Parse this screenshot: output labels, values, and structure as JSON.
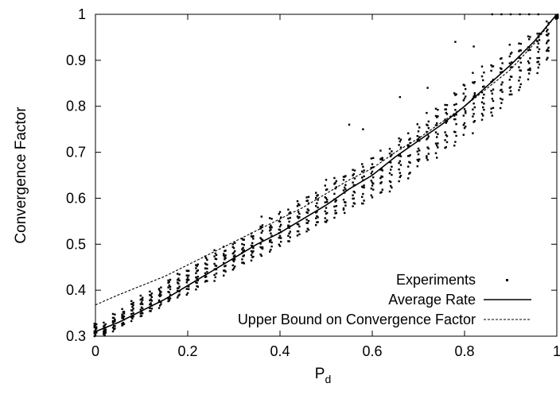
{
  "chart_data": {
    "type": "scatter",
    "xlabel": "P",
    "xlabel_sub": "d",
    "ylabel": "Convergence Factor",
    "xlim": [
      0,
      1
    ],
    "ylim": [
      0.3,
      1
    ],
    "xticks": [
      "0",
      "0.2",
      "0.4",
      "0.6",
      "0.8",
      "1"
    ],
    "xtick_values": [
      0,
      0.2,
      0.4,
      0.6,
      0.8,
      1
    ],
    "yticks": [
      "0.3",
      "0.4",
      "0.5",
      "0.6",
      "0.7",
      "0.8",
      "0.9",
      "1"
    ],
    "ytick_values": [
      0.3,
      0.4,
      0.5,
      0.6,
      0.7,
      0.8,
      0.9,
      1
    ],
    "legend_position": "bottom-right",
    "series": [
      {
        "name": "Experiments",
        "style": "points",
        "x": [
          0,
          0.02,
          0.04,
          0.06,
          0.08,
          0.1,
          0.12,
          0.14,
          0.16,
          0.18,
          0.2,
          0.22,
          0.24,
          0.26,
          0.28,
          0.3,
          0.32,
          0.34,
          0.36,
          0.38,
          0.4,
          0.42,
          0.44,
          0.46,
          0.48,
          0.5,
          0.52,
          0.54,
          0.56,
          0.58,
          0.6,
          0.62,
          0.64,
          0.66,
          0.68,
          0.7,
          0.72,
          0.74,
          0.76,
          0.78,
          0.8,
          0.82,
          0.84,
          0.86,
          0.88,
          0.9,
          0.92,
          0.94,
          0.96,
          0.98,
          1
        ],
        "y_min": [
          0.3,
          0.3,
          0.31,
          0.32,
          0.33,
          0.34,
          0.35,
          0.36,
          0.37,
          0.38,
          0.39,
          0.4,
          0.41,
          0.42,
          0.43,
          0.44,
          0.45,
          0.46,
          0.47,
          0.48,
          0.49,
          0.5,
          0.51,
          0.52,
          0.53,
          0.54,
          0.55,
          0.56,
          0.57,
          0.58,
          0.59,
          0.6,
          0.61,
          0.63,
          0.64,
          0.66,
          0.67,
          0.68,
          0.7,
          0.71,
          0.73,
          0.74,
          0.76,
          0.77,
          0.79,
          0.81,
          0.83,
          0.85,
          0.87,
          0.9,
          0.99
        ],
        "y_max": [
          0.33,
          0.33,
          0.35,
          0.36,
          0.38,
          0.39,
          0.4,
          0.41,
          0.43,
          0.44,
          0.45,
          0.46,
          0.48,
          0.49,
          0.5,
          0.51,
          0.52,
          0.53,
          0.55,
          0.56,
          0.57,
          0.58,
          0.6,
          0.61,
          0.62,
          0.63,
          0.65,
          0.66,
          0.67,
          0.68,
          0.7,
          0.71,
          0.72,
          0.74,
          0.75,
          0.77,
          0.79,
          0.81,
          0.82,
          0.84,
          0.86,
          0.88,
          0.89,
          0.91,
          0.92,
          0.94,
          0.95,
          0.96,
          0.97,
          0.99,
          1
        ],
        "outliers": [
          [
            0.36,
            0.56
          ],
          [
            0.4,
            0.57
          ],
          [
            0.5,
            0.64
          ],
          [
            0.55,
            0.76
          ],
          [
            0.58,
            0.75
          ],
          [
            0.66,
            0.82
          ],
          [
            0.72,
            0.84
          ],
          [
            0.78,
            0.94
          ],
          [
            0.82,
            0.93
          ],
          [
            0.86,
            1
          ],
          [
            0.88,
            1
          ],
          [
            0.9,
            1
          ],
          [
            0.92,
            1
          ],
          [
            0.94,
            1
          ],
          [
            0.96,
            1
          ]
        ]
      },
      {
        "name": "Average Rate",
        "style": "solid",
        "x": [
          0,
          0.05,
          0.1,
          0.15,
          0.2,
          0.25,
          0.3,
          0.35,
          0.4,
          0.45,
          0.5,
          0.55,
          0.6,
          0.65,
          0.7,
          0.75,
          0.8,
          0.85,
          0.9,
          0.95,
          1
        ],
        "y": [
          0.31,
          0.33,
          0.355,
          0.38,
          0.41,
          0.44,
          0.47,
          0.5,
          0.525,
          0.555,
          0.585,
          0.62,
          0.65,
          0.69,
          0.725,
          0.76,
          0.8,
          0.845,
          0.89,
          0.94,
          1
        ]
      },
      {
        "name": "Upper Bound on Convergence Factor",
        "style": "dashed",
        "x": [
          0,
          0.05,
          0.1,
          0.15,
          0.2,
          0.25,
          0.3,
          0.35,
          0.4,
          0.45,
          0.5,
          0.55,
          0.6,
          0.65,
          0.7,
          0.75,
          0.8,
          0.85,
          0.9,
          0.95,
          1
        ],
        "y": [
          0.368,
          0.39,
          0.41,
          0.43,
          0.455,
          0.48,
          0.505,
          0.53,
          0.555,
          0.58,
          0.61,
          0.64,
          0.665,
          0.7,
          0.73,
          0.765,
          0.8,
          0.84,
          0.88,
          0.935,
          1
        ]
      }
    ]
  }
}
